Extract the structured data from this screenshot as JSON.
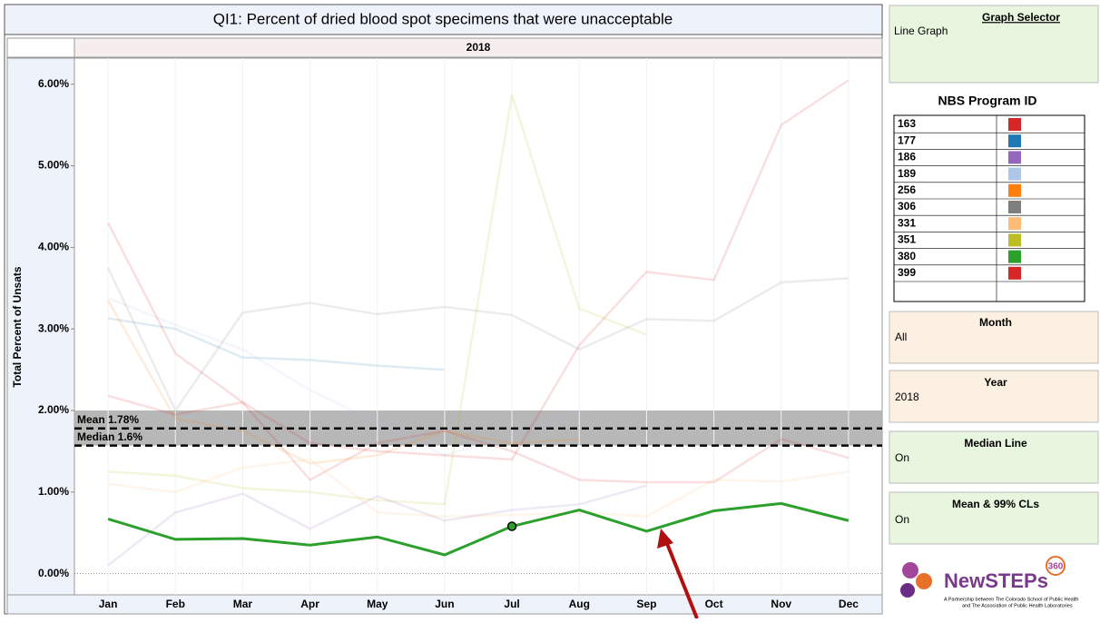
{
  "chart_data": {
    "type": "line",
    "title": "QI1: Percent of dried blood spot specimens that were unacceptable",
    "subtitle": "2018",
    "y_label": "Total Percent of Unsats",
    "categories": [
      "Jan",
      "Feb",
      "Mar",
      "Apr",
      "May",
      "Jun",
      "Jul",
      "Aug",
      "Sep",
      "Oct",
      "Nov",
      "Dec"
    ],
    "ylim": [
      -0.26,
      6.32
    ],
    "yticks": [
      {
        "value": 0,
        "label": "0.00%"
      },
      {
        "value": 1,
        "label": "1.00%"
      },
      {
        "value": 2,
        "label": "2.00%"
      },
      {
        "value": 3,
        "label": "3.00%"
      },
      {
        "value": 4,
        "label": "4.00%"
      },
      {
        "value": 5,
        "label": "5.00%"
      },
      {
        "value": 6,
        "label": "6.00%"
      }
    ],
    "highlight": "380",
    "ci_band": [
      1.57,
      2.0
    ],
    "reference_lines": [
      {
        "value": 1.78,
        "label": "Mean 1.78%"
      },
      {
        "value": 1.57,
        "label": "Median 1.6%"
      }
    ],
    "legend_title": "NBS Program ID",
    "series": [
      {
        "name": "163",
        "color": "#d62728",
        "values": [
          2.18,
          1.95,
          2.1,
          1.15,
          1.6,
          1.75,
          1.5,
          1.15,
          1.12,
          1.12,
          1.65,
          1.42
        ]
      },
      {
        "name": "177",
        "color": "#1f77b4",
        "values": [
          3.13,
          3.0,
          2.65,
          2.62,
          2.55,
          2.5,
          null,
          null,
          null,
          null,
          null,
          null
        ]
      },
      {
        "name": "186",
        "color": "#9467bd",
        "values": [
          0.1,
          0.75,
          0.98,
          0.55,
          0.95,
          0.65,
          0.78,
          0.85,
          1.08,
          null,
          null,
          null
        ]
      },
      {
        "name": "189",
        "color": "#aec7e8",
        "values": [
          3.38,
          3.05,
          2.75,
          2.25,
          1.85,
          1.45,
          1.7,
          2.0,
          1.6,
          null,
          null,
          null
        ]
      },
      {
        "name": "256",
        "color": "#ff7f0e",
        "values": [
          3.35,
          1.9,
          1.75,
          1.35,
          1.45,
          1.75,
          1.6,
          1.65,
          null,
          null,
          null,
          null
        ]
      },
      {
        "name": "306",
        "color": "#7f7f7f",
        "values": [
          3.75,
          2.0,
          3.2,
          3.32,
          3.18,
          3.27,
          3.17,
          2.75,
          3.12,
          3.1,
          3.57,
          3.62
        ]
      },
      {
        "name": "331",
        "color": "#ffbb78",
        "values": [
          1.1,
          1.0,
          1.3,
          1.4,
          0.75,
          0.7,
          0.72,
          0.75,
          0.7,
          1.15,
          1.13,
          1.25
        ]
      },
      {
        "name": "351",
        "color": "#bcbd22",
        "values": [
          1.25,
          1.2,
          1.05,
          1.0,
          0.9,
          0.85,
          5.87,
          3.25,
          2.93,
          null,
          null,
          null
        ]
      },
      {
        "name": "380",
        "color": "#2ca02c",
        "values": [
          0.67,
          0.42,
          0.43,
          0.35,
          0.45,
          0.23,
          0.58,
          0.78,
          0.52,
          0.77,
          0.86,
          0.65
        ]
      },
      {
        "name": "399",
        "color": "#d62728",
        "values": [
          4.3,
          2.7,
          2.1,
          1.6,
          1.5,
          1.45,
          1.4,
          2.8,
          3.7,
          3.6,
          5.5,
          6.05
        ]
      }
    ]
  },
  "panels": {
    "graph_selector": {
      "title": "Graph Selector",
      "value": "Line Graph"
    },
    "month": {
      "title": "Month",
      "value": "All"
    },
    "year": {
      "title": "Year",
      "value": "2018"
    },
    "median_line": {
      "title": "Median Line",
      "value": "On"
    },
    "mean_cls": {
      "title": "Mean & 99% CLs",
      "value": "On"
    },
    "logo": {
      "name": "NewSTEPs",
      "badge": "360",
      "tagline_1": "A Partnership between The Colorado School of Public Health",
      "tagline_2": "and The Association of Public Health Laboratories"
    }
  }
}
